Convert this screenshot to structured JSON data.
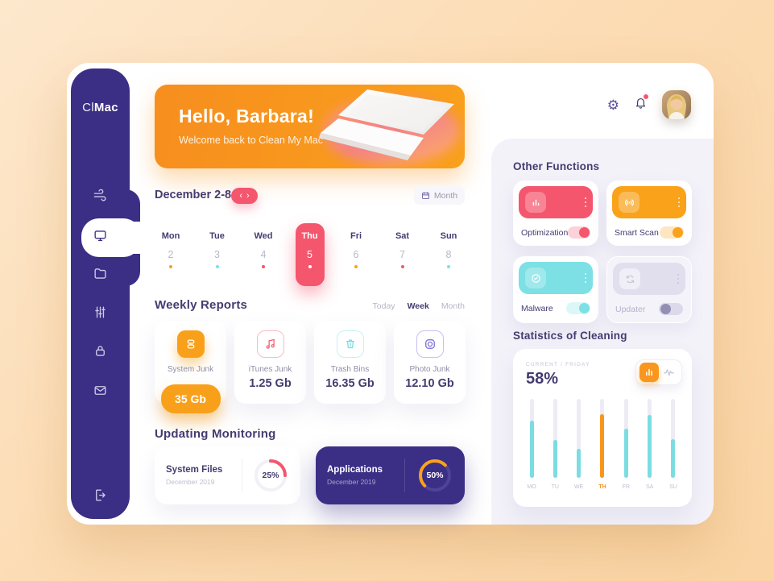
{
  "app": {
    "logo_prefix": "Cl",
    "logo_suffix": "Mac"
  },
  "header": {
    "title": "Hello, Barbara!",
    "subtitle": "Welcome back to Clean My Mac"
  },
  "calendar": {
    "range_label": "December 2-8",
    "prev_arrow": "‹",
    "next_arrow": "›",
    "month_button": "Month",
    "days": [
      {
        "day": "Mon",
        "date": "2",
        "dot_color": "#f9a21a",
        "selected": false
      },
      {
        "day": "Tue",
        "date": "3",
        "dot_color": "#79e2e2",
        "selected": false
      },
      {
        "day": "Wed",
        "date": "4",
        "dot_color": "#f4566e",
        "selected": false
      },
      {
        "day": "Thu",
        "date": "5",
        "dot_color": "#ffffff",
        "selected": true
      },
      {
        "day": "Fri",
        "date": "6",
        "dot_color": "#f9a21a",
        "selected": false
      },
      {
        "day": "Sat",
        "date": "7",
        "dot_color": "#f4566e",
        "selected": false
      },
      {
        "day": "Sun",
        "date": "8",
        "dot_color": "#79e2e2",
        "selected": false
      }
    ]
  },
  "weekly_reports": {
    "title": "Weekly Reports",
    "tabs": [
      {
        "label": "Today",
        "active": false
      },
      {
        "label": "Week",
        "active": true
      },
      {
        "label": "Month",
        "active": false
      }
    ],
    "cards": [
      {
        "label": "System Junk",
        "value": "35 Gb",
        "icon": "stack-icon",
        "accent": "#f9a01b",
        "filled": true
      },
      {
        "label": "iTunes Junk",
        "value": "1.25 Gb",
        "icon": "music-note-icon",
        "accent": "#f4566e",
        "filled": false
      },
      {
        "label": "Trash Bins",
        "value": "16.35 Gb",
        "icon": "trash-icon",
        "accent": "#6fdde2",
        "filled": false
      },
      {
        "label": "Photo Junk",
        "value": "12.10 Gb",
        "icon": "camera-icon",
        "accent": "#6f66d6",
        "filled": false
      }
    ]
  },
  "monitoring": {
    "title": "Updating Monitoring",
    "cards": [
      {
        "label": "System Files",
        "period": "December 2019",
        "percent": 25,
        "percent_label": "25%",
        "arc_color": "#f4566e",
        "theme": "light"
      },
      {
        "label": "Applications",
        "period": "December 2019",
        "percent": 50,
        "percent_label": "50%",
        "arc_color": "#f9a21a",
        "theme": "dark"
      }
    ]
  },
  "other_functions": {
    "title": "Other Functions",
    "cards": [
      {
        "label": "Optimization",
        "color": "#f4566e",
        "icon": "bar-chart-icon",
        "enabled": true
      },
      {
        "label": "Smart Scan",
        "color": "#f9a21a",
        "icon": "broadcast-icon",
        "enabled": true
      },
      {
        "label": "Malware",
        "color": "#7ce0e4",
        "icon": "check-circle-icon",
        "enabled": true
      },
      {
        "label": "Updater",
        "color": "#e1dfee",
        "icon": "sync-icon",
        "enabled": false
      }
    ]
  },
  "statistics": {
    "title": "Statistics of Cleaning",
    "current_label": "CURRENT / FRIDAY",
    "current_value": "58%"
  },
  "chart_data": {
    "type": "bar",
    "title": "Statistics of Cleaning",
    "categories": [
      "MO",
      "TU",
      "WE",
      "TH",
      "FR",
      "SA",
      "SU"
    ],
    "values": [
      72,
      48,
      37,
      81,
      62,
      80,
      49
    ],
    "unit": "percent of track height",
    "ylim": [
      0,
      100
    ],
    "bar_color": "#7adde2",
    "highlight_index": 3,
    "highlight_color": "#f8961d",
    "legend": "none",
    "grid": false
  }
}
